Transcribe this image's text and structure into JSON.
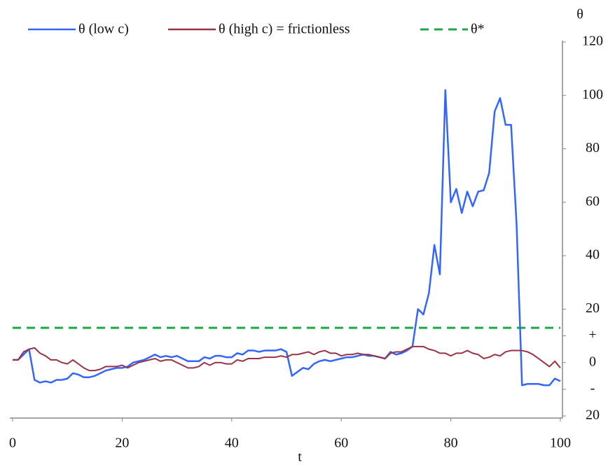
{
  "chart_data": {
    "type": "line",
    "x_label": "t",
    "y_label": "θ",
    "x": [
      0,
      1,
      2,
      3,
      4,
      5,
      6,
      7,
      8,
      9,
      10,
      11,
      12,
      13,
      14,
      15,
      16,
      17,
      18,
      19,
      20,
      21,
      22,
      23,
      24,
      25,
      26,
      27,
      28,
      29,
      30,
      31,
      32,
      33,
      34,
      35,
      36,
      37,
      38,
      39,
      40,
      41,
      42,
      43,
      44,
      45,
      46,
      47,
      48,
      49,
      50,
      51,
      52,
      53,
      54,
      55,
      56,
      57,
      58,
      59,
      60,
      61,
      62,
      63,
      64,
      65,
      66,
      67,
      68,
      69,
      70,
      71,
      72,
      73,
      74,
      75,
      76,
      77,
      78,
      79,
      80,
      81,
      82,
      83,
      84,
      85,
      86,
      87,
      88,
      89,
      90,
      91,
      92,
      93,
      94,
      95,
      96,
      97,
      98,
      99,
      100
    ],
    "series": [
      {
        "name": "θ (low c)",
        "color": "#3366ff",
        "values": [
          1,
          1,
          3,
          5,
          -6.5,
          -7.5,
          -7,
          -7.5,
          -6.5,
          -6.5,
          -6,
          -4,
          -4.5,
          -5.5,
          -5.5,
          -5,
          -4,
          -3,
          -2.5,
          -2,
          -2,
          -1.5,
          0,
          0.5,
          1,
          2,
          3,
          2,
          2.5,
          2,
          2.5,
          1.5,
          0.5,
          0.5,
          0.5,
          2,
          1.5,
          2.5,
          2.5,
          2,
          2,
          3.5,
          3,
          4.5,
          4.5,
          4,
          4.5,
          4.5,
          4.5,
          5,
          4,
          -5,
          -3.5,
          -2,
          -2.5,
          -0.5,
          0.5,
          1,
          0.5,
          1,
          1.5,
          2,
          2,
          2.5,
          3,
          2.5,
          2.5,
          2,
          1.5,
          4,
          3,
          3.5,
          4.5,
          6,
          20,
          18,
          26,
          44,
          33,
          102,
          60,
          65,
          56,
          64,
          58.5,
          64,
          64.5,
          71,
          94,
          99,
          89,
          89,
          52,
          -8.5,
          -8,
          -8,
          -8,
          -8.5,
          -8.5,
          -6,
          -7
        ]
      },
      {
        "name": "θ (high c) = frictionless",
        "color": "#993344",
        "values": [
          1,
          1,
          4,
          5,
          5.5,
          3.5,
          2.5,
          1,
          1,
          0,
          -0.5,
          1,
          -0.5,
          -2,
          -3,
          -3,
          -2.5,
          -1.5,
          -1.5,
          -1.5,
          -1,
          -2,
          -1,
          0,
          0.5,
          1,
          1.5,
          0.5,
          1,
          1,
          0,
          -1,
          -2,
          -2,
          -1.5,
          0,
          -1,
          0,
          0,
          -0.5,
          -0.5,
          1,
          0.5,
          1.5,
          1.5,
          1.5,
          2,
          2,
          2,
          2.5,
          2,
          3,
          3,
          3.5,
          4,
          3,
          4,
          4.5,
          3.5,
          3.5,
          2.5,
          3,
          3,
          3.5,
          3,
          3,
          2.5,
          2,
          1.5,
          3.5,
          4,
          4,
          5,
          6,
          6,
          6,
          5,
          4.5,
          3.5,
          3.5,
          2.5,
          3.5,
          3.5,
          4.5,
          3.5,
          3,
          1.5,
          2,
          3,
          2.5,
          4,
          4.5,
          4.5,
          4.5,
          4,
          3,
          1.5,
          0,
          -1.5,
          0.5,
          -2
        ]
      }
    ],
    "reference_line": {
      "name": "θ*",
      "value": 13,
      "color": "#1aaa4a",
      "dashed": true
    },
    "xlim": [
      0,
      100
    ],
    "xticks": [
      0,
      20,
      40,
      60,
      80,
      100
    ],
    "ylim": [
      -20,
      120
    ],
    "yticks": [
      {
        "value": -20,
        "label": "20"
      },
      {
        "value": -10,
        "label": "-"
      },
      0,
      {
        "value": 10,
        "label": "+"
      },
      20,
      40,
      60,
      80,
      100,
      120
    ],
    "y_axis_side": "right",
    "grid": false
  }
}
